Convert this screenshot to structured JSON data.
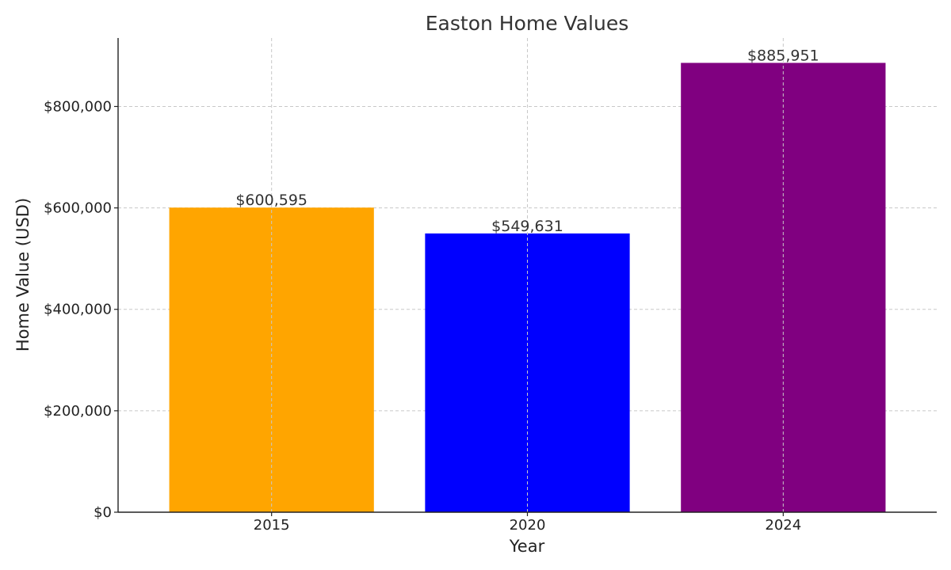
{
  "chart_data": {
    "type": "bar",
    "title": "Easton Home Values",
    "xlabel": "Year",
    "ylabel": "Home Value (USD)",
    "categories": [
      "2015",
      "2020",
      "2024"
    ],
    "values": [
      600595,
      549631,
      885951
    ],
    "value_labels": [
      "$600,595",
      "$549,631",
      "$885,951"
    ],
    "colors": [
      "#FFA500",
      "#0000FF",
      "#800080"
    ],
    "ylim": [
      0,
      935000
    ],
    "yticks": [
      0,
      200000,
      400000,
      600000,
      800000
    ],
    "ytick_labels": [
      "$0",
      "$200,000",
      "$400,000",
      "$600,000",
      "$800,000"
    ],
    "grid": true,
    "legend": "none"
  }
}
